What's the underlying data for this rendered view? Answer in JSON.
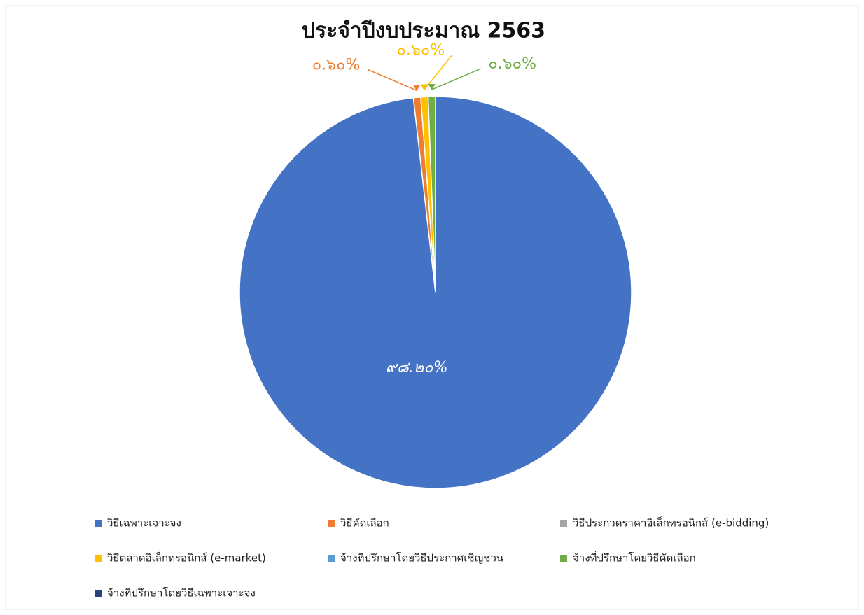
{
  "chart_data": {
    "type": "pie",
    "title": "ประจำปีงบประมาณ 2563",
    "categories": [
      "วิธีเฉพาะเจาะจง",
      "วิธีคัดเลือก",
      "วิธีประกวดราคาอิเล็กทรอนิกส์ (e-bidding)",
      "วิธีตลาดอิเล็กทรอนิกส์ (e-market)",
      "จ้างที่ปรึกษาโดยวิธีประกาศเชิญชวน",
      "จ้างที่ปรึกษาโดยวิธีคัดเลือก",
      "จ้างที่ปรึกษาโดยวิธีเฉพาะเจาะจง"
    ],
    "values": [
      98.2,
      0.6,
      0,
      0.6,
      0,
      0.6,
      0
    ],
    "value_labels": [
      "๙๘.๒๐%",
      "๐.๖๐%",
      null,
      "๐.๖๐%",
      null,
      "๐.๖๐%",
      null
    ],
    "colors": [
      "#4472c4",
      "#ed7d31",
      "#a5a5a5",
      "#ffc000",
      "#5b9bd5",
      "#70ad47",
      "#264478"
    ],
    "legend": "bottom"
  }
}
